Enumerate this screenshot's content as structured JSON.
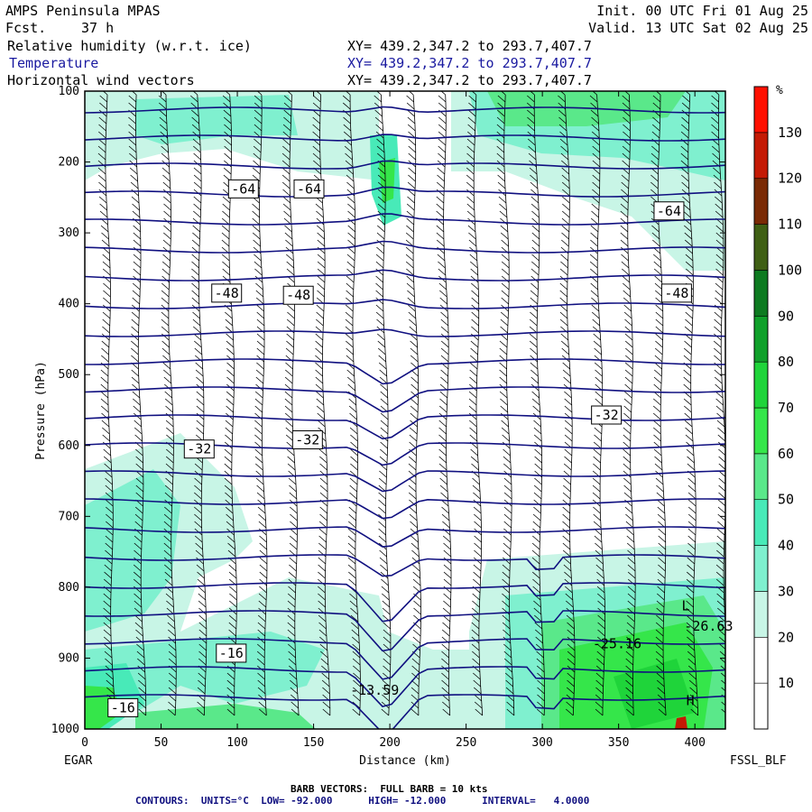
{
  "header": {
    "title": "AMPS Peninsula MPAS",
    "forecast_label": "Fcst.",
    "forecast_hours": "37 h",
    "init": "Init. 00 UTC Fri 01 Aug 25",
    "valid": "Valid. 13 UTC Sat 02 Aug 25",
    "fields": [
      {
        "name": "Relative humidity (w.r.t. ice)",
        "xy": "XY= 439.2,347.2 to 293.7,407.7"
      },
      {
        "name": "Temperature",
        "xy": "XY= 439.2,347.2 to 293.7,407.7"
      },
      {
        "name": "Horizontal wind vectors",
        "xy": "XY= 439.2,347.2 to 293.7,407.7"
      }
    ]
  },
  "footer": {
    "barb_note": "BARB VECTORS:  FULL BARB = 10 kts",
    "contours_note": "CONTOURS:  UNITS=°C  LOW= -92.000      HIGH= -12.000      INTERVAL=   4.0000",
    "left_station": "EGAR",
    "right_station": "FSSL_BLF"
  },
  "colors": {
    "contour": "#101080",
    "field_label_blue": "#1a1aa0",
    "rh_levels": [
      "#ffffff",
      "#ffffff",
      "#ffffff",
      "#c8f5e6",
      "#7ff0cf",
      "#48eab8",
      "#5ae88a",
      "#35e64a",
      "#1fd43a",
      "#10a02a",
      "#0d7a20",
      "#3f5f14",
      "#7a2a05",
      "#c41a05",
      "#ff1000"
    ]
  },
  "chart_data": {
    "type": "heatmap",
    "xlabel": "Distance (km)",
    "ylabel": "Pressure (hPa)",
    "xlim": [
      0,
      420
    ],
    "ylim": [
      1000,
      100
    ],
    "xticks": [
      0,
      50,
      100,
      150,
      200,
      250,
      300,
      350,
      400
    ],
    "yticks": [
      100,
      200,
      300,
      400,
      500,
      600,
      700,
      800,
      900,
      1000
    ],
    "colorbar": {
      "unit": "%",
      "ticks": [
        10,
        20,
        30,
        40,
        50,
        60,
        70,
        80,
        90,
        100,
        110,
        120,
        130
      ]
    },
    "temperature_contour_labels": [
      {
        "text": "-64",
        "x": 104,
        "p": 238
      },
      {
        "text": "-64",
        "x": 147,
        "p": 238
      },
      {
        "text": "-64",
        "x": 383,
        "p": 269
      },
      {
        "text": "-48",
        "x": 93,
        "p": 385
      },
      {
        "text": "-48",
        "x": 140,
        "p": 388
      },
      {
        "text": "-48",
        "x": 388,
        "p": 385
      },
      {
        "text": "-32",
        "x": 75,
        "p": 605
      },
      {
        "text": "-32",
        "x": 146,
        "p": 592
      },
      {
        "text": "-32",
        "x": 342,
        "p": 557
      },
      {
        "text": "-25.16",
        "x": 349,
        "p": 880
      },
      {
        "text": "-26.63",
        "x": 409,
        "p": 855
      },
      {
        "text": "-16",
        "x": 96,
        "p": 893
      },
      {
        "text": "-16",
        "x": 25,
        "p": 970
      },
      {
        "text": "-13.59",
        "x": 190,
        "p": 945
      },
      {
        "text": "H",
        "x": 397,
        "p": 960
      },
      {
        "text": "L",
        "x": 394,
        "p": 826
      }
    ]
  }
}
